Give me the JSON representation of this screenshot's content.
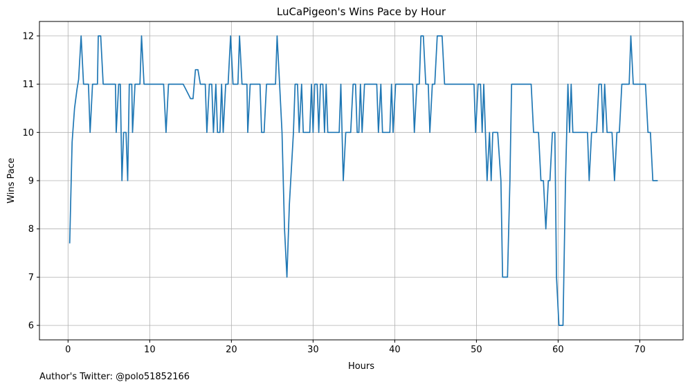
{
  "chart_data": {
    "type": "line",
    "title": "LuCaPigeon's Wins Pace by Hour",
    "xlabel": "Hours",
    "ylabel": "Wins Pace",
    "xlim": [
      -3.5,
      75.3
    ],
    "ylim": [
      5.7,
      12.3
    ],
    "xticks": [
      0,
      10,
      20,
      30,
      40,
      50,
      60,
      70
    ],
    "yticks": [
      6,
      7,
      8,
      9,
      10,
      11,
      12
    ],
    "grid": true,
    "series": [
      {
        "color": "#1f77b4",
        "points": [
          [
            0.2,
            7.7
          ],
          [
            0.5,
            9.8
          ],
          [
            0.8,
            10.5
          ],
          [
            1.1,
            10.9
          ],
          [
            1.3,
            11.1
          ],
          [
            1.6,
            12
          ],
          [
            1.9,
            11
          ],
          [
            2.2,
            11
          ],
          [
            2.5,
            11
          ],
          [
            2.7,
            10
          ],
          [
            3.0,
            11
          ],
          [
            3.3,
            11
          ],
          [
            3.6,
            11
          ],
          [
            3.7,
            12
          ],
          [
            4.0,
            12
          ],
          [
            4.3,
            11
          ],
          [
            4.6,
            11
          ],
          [
            4.9,
            11
          ],
          [
            5.2,
            11
          ],
          [
            5.5,
            11
          ],
          [
            5.8,
            11
          ],
          [
            5.9,
            10
          ],
          [
            6.2,
            11
          ],
          [
            6.4,
            11
          ],
          [
            6.6,
            9
          ],
          [
            6.8,
            10
          ],
          [
            7.1,
            10
          ],
          [
            7.3,
            9
          ],
          [
            7.5,
            11
          ],
          [
            7.8,
            11
          ],
          [
            7.9,
            10
          ],
          [
            8.2,
            11
          ],
          [
            8.5,
            11
          ],
          [
            8.8,
            11
          ],
          [
            9.0,
            12
          ],
          [
            9.3,
            11
          ],
          [
            9.6,
            11
          ],
          [
            9.9,
            11
          ],
          [
            10.2,
            11
          ],
          [
            10.5,
            11
          ],
          [
            10.8,
            11
          ],
          [
            11.1,
            11
          ],
          [
            11.4,
            11
          ],
          [
            11.7,
            11
          ],
          [
            12.0,
            10
          ],
          [
            12.3,
            11
          ],
          [
            12.6,
            11
          ],
          [
            12.9,
            11
          ],
          [
            13.2,
            11
          ],
          [
            13.5,
            11
          ],
          [
            13.8,
            11
          ],
          [
            14.1,
            11
          ],
          [
            14.4,
            10.9
          ],
          [
            14.7,
            10.8
          ],
          [
            15.0,
            10.7
          ],
          [
            15.3,
            10.7
          ],
          [
            15.6,
            11.3
          ],
          [
            15.9,
            11.3
          ],
          [
            16.2,
            11
          ],
          [
            16.5,
            11
          ],
          [
            16.8,
            11
          ],
          [
            17.0,
            10
          ],
          [
            17.3,
            11
          ],
          [
            17.6,
            11
          ],
          [
            17.8,
            10
          ],
          [
            18.1,
            11
          ],
          [
            18.3,
            10
          ],
          [
            18.6,
            10
          ],
          [
            18.8,
            11
          ],
          [
            19.0,
            10
          ],
          [
            19.3,
            11
          ],
          [
            19.6,
            11
          ],
          [
            19.9,
            12
          ],
          [
            20.2,
            11
          ],
          [
            20.5,
            11
          ],
          [
            20.8,
            11
          ],
          [
            21.0,
            12
          ],
          [
            21.3,
            11
          ],
          [
            21.6,
            11
          ],
          [
            21.9,
            11
          ],
          [
            22.0,
            10
          ],
          [
            22.3,
            11
          ],
          [
            22.6,
            11
          ],
          [
            22.9,
            11
          ],
          [
            23.2,
            11
          ],
          [
            23.5,
            11
          ],
          [
            23.7,
            10
          ],
          [
            24.0,
            10
          ],
          [
            24.3,
            11
          ],
          [
            24.6,
            11
          ],
          [
            24.9,
            11
          ],
          [
            25.2,
            11
          ],
          [
            25.4,
            11
          ],
          [
            25.6,
            12
          ],
          [
            25.9,
            11
          ],
          [
            26.2,
            10
          ],
          [
            26.5,
            8
          ],
          [
            26.8,
            7
          ],
          [
            27.1,
            8.5
          ],
          [
            27.6,
            10
          ],
          [
            27.8,
            11
          ],
          [
            28.1,
            11
          ],
          [
            28.3,
            10
          ],
          [
            28.6,
            11
          ],
          [
            28.8,
            10
          ],
          [
            29.1,
            10
          ],
          [
            29.4,
            10
          ],
          [
            29.6,
            10
          ],
          [
            29.8,
            11
          ],
          [
            30.0,
            10
          ],
          [
            30.2,
            11
          ],
          [
            30.5,
            11
          ],
          [
            30.7,
            10
          ],
          [
            30.9,
            11
          ],
          [
            31.2,
            11
          ],
          [
            31.4,
            10
          ],
          [
            31.6,
            11
          ],
          [
            31.8,
            10
          ],
          [
            32.1,
            10
          ],
          [
            32.4,
            10
          ],
          [
            32.7,
            10
          ],
          [
            33.0,
            10
          ],
          [
            33.2,
            10
          ],
          [
            33.4,
            11
          ],
          [
            33.7,
            9
          ],
          [
            34.0,
            10
          ],
          [
            34.3,
            10
          ],
          [
            34.6,
            10
          ],
          [
            34.9,
            11
          ],
          [
            35.2,
            11
          ],
          [
            35.4,
            10
          ],
          [
            35.6,
            10
          ],
          [
            35.8,
            11
          ],
          [
            36.0,
            10
          ],
          [
            36.3,
            11
          ],
          [
            36.6,
            11
          ],
          [
            36.9,
            11
          ],
          [
            37.2,
            11
          ],
          [
            37.5,
            11
          ],
          [
            37.8,
            11
          ],
          [
            38.0,
            10
          ],
          [
            38.3,
            11
          ],
          [
            38.5,
            10
          ],
          [
            38.8,
            10
          ],
          [
            39.1,
            10
          ],
          [
            39.4,
            10
          ],
          [
            39.6,
            11
          ],
          [
            39.8,
            10
          ],
          [
            40.1,
            11
          ],
          [
            40.4,
            11
          ],
          [
            40.7,
            11
          ],
          [
            41.0,
            11
          ],
          [
            41.3,
            11
          ],
          [
            41.6,
            11
          ],
          [
            41.9,
            11
          ],
          [
            42.2,
            11
          ],
          [
            42.4,
            10
          ],
          [
            42.7,
            11
          ],
          [
            43.0,
            11
          ],
          [
            43.2,
            12
          ],
          [
            43.5,
            12
          ],
          [
            43.8,
            11
          ],
          [
            44.1,
            11
          ],
          [
            44.3,
            10
          ],
          [
            44.6,
            11
          ],
          [
            44.9,
            11
          ],
          [
            45.2,
            12
          ],
          [
            45.5,
            12
          ],
          [
            45.8,
            12
          ],
          [
            46.1,
            11
          ],
          [
            46.4,
            11
          ],
          [
            46.7,
            11
          ],
          [
            47.0,
            11
          ],
          [
            47.3,
            11
          ],
          [
            47.6,
            11
          ],
          [
            47.9,
            11
          ],
          [
            48.2,
            11
          ],
          [
            48.5,
            11
          ],
          [
            48.8,
            11
          ],
          [
            49.1,
            11
          ],
          [
            49.4,
            11
          ],
          [
            49.7,
            11
          ],
          [
            49.9,
            10
          ],
          [
            50.2,
            11
          ],
          [
            50.5,
            11
          ],
          [
            50.7,
            10
          ],
          [
            50.9,
            11
          ],
          [
            51.1,
            10
          ],
          [
            51.3,
            9
          ],
          [
            51.6,
            10
          ],
          [
            51.8,
            9
          ],
          [
            52.0,
            10
          ],
          [
            52.3,
            10
          ],
          [
            52.6,
            10
          ],
          [
            53.0,
            9
          ],
          [
            53.2,
            7
          ],
          [
            53.5,
            7
          ],
          [
            53.8,
            7
          ],
          [
            54.1,
            9
          ],
          [
            54.3,
            11
          ],
          [
            54.6,
            11
          ],
          [
            54.9,
            11
          ],
          [
            55.2,
            11
          ],
          [
            55.5,
            11
          ],
          [
            55.8,
            11
          ],
          [
            56.1,
            11
          ],
          [
            56.4,
            11
          ],
          [
            56.7,
            11
          ],
          [
            57.0,
            10
          ],
          [
            57.3,
            10
          ],
          [
            57.6,
            10
          ],
          [
            57.9,
            9
          ],
          [
            58.2,
            9
          ],
          [
            58.5,
            8
          ],
          [
            58.8,
            9
          ],
          [
            59.0,
            9
          ],
          [
            59.3,
            10
          ],
          [
            59.6,
            10
          ],
          [
            59.8,
            7
          ],
          [
            60.1,
            6
          ],
          [
            60.4,
            6
          ],
          [
            60.6,
            6
          ],
          [
            60.9,
            9
          ],
          [
            61.2,
            11
          ],
          [
            61.4,
            10
          ],
          [
            61.6,
            11
          ],
          [
            61.8,
            10
          ],
          [
            62.1,
            10
          ],
          [
            62.4,
            10
          ],
          [
            62.7,
            10
          ],
          [
            63.0,
            10
          ],
          [
            63.3,
            10
          ],
          [
            63.6,
            10
          ],
          [
            63.8,
            9
          ],
          [
            64.1,
            10
          ],
          [
            64.4,
            10
          ],
          [
            64.7,
            10
          ],
          [
            65.0,
            11
          ],
          [
            65.3,
            11
          ],
          [
            65.5,
            10
          ],
          [
            65.7,
            11
          ],
          [
            66.0,
            10
          ],
          [
            66.3,
            10
          ],
          [
            66.6,
            10
          ],
          [
            66.9,
            9
          ],
          [
            67.2,
            10
          ],
          [
            67.5,
            10
          ],
          [
            67.8,
            11
          ],
          [
            68.1,
            11
          ],
          [
            68.4,
            11
          ],
          [
            68.7,
            11
          ],
          [
            68.9,
            12
          ],
          [
            69.2,
            11
          ],
          [
            69.5,
            11
          ],
          [
            69.8,
            11
          ],
          [
            70.1,
            11
          ],
          [
            70.4,
            11
          ],
          [
            70.7,
            11
          ],
          [
            71.0,
            10
          ],
          [
            71.3,
            10
          ],
          [
            71.6,
            9
          ],
          [
            71.9,
            9
          ],
          [
            72.2,
            9
          ]
        ]
      }
    ]
  },
  "footer": {
    "text": "Author's Twitter: @polo51852166"
  }
}
